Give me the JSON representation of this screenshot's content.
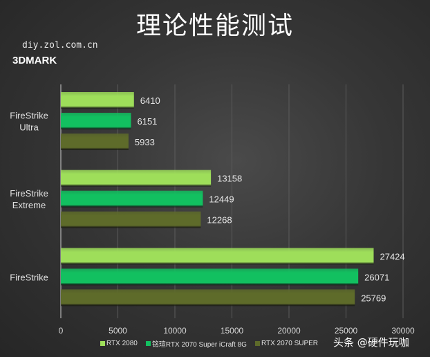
{
  "chart_data": {
    "type": "bar",
    "orientation": "horizontal",
    "title": "理论性能测试",
    "source": "diy.zol.com.cn",
    "subtitle": "3DMARK",
    "categories": [
      "FireStrike Ultra",
      "FireStrike Extreme",
      "FireStrike"
    ],
    "category_lines": [
      [
        "FireStrike",
        "Ultra"
      ],
      [
        "FireStrike",
        "Extreme"
      ],
      [
        "FireStrike"
      ]
    ],
    "series": [
      {
        "name": "RTX 2080",
        "color": "#9ede5a",
        "values": [
          6410,
          13158,
          27424
        ]
      },
      {
        "name": "铭瑄RTX 2070 Super iCraft 8G",
        "color": "#12c060",
        "values": [
          6151,
          12449,
          26071
        ]
      },
      {
        "name": "RTX 2070 SUPER",
        "color": "#5e6b2a",
        "values": [
          5933,
          12268,
          25769
        ]
      }
    ],
    "xlim": [
      0,
      30000
    ],
    "xticks": [
      "0",
      "5000",
      "10000",
      "15000",
      "20000",
      "25000",
      "30000"
    ],
    "grid": true,
    "legend_position": "bottom"
  },
  "watermark": "头条 @硬件玩咖"
}
